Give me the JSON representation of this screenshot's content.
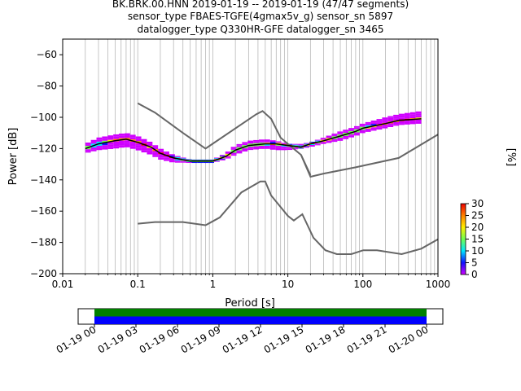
{
  "title_lines": [
    "BK.BRK.00.HNN   2019-01-19 -- 2019-01-19  (47/47 segments)",
    "sensor_type FBAES-TGFE(4gmax5v_g) sensor_sn 5897",
    "datalogger_type Q330HR-GFE datalogger_sn 3465"
  ],
  "chart_data": [
    {
      "type": "heatmap",
      "xlabel": "Period [s]",
      "ylabel": "Power [dB]",
      "xscale": "log",
      "xlim": [
        0.01,
        1000
      ],
      "ylim": [
        -200,
        -50
      ],
      "xticks": [
        0.01,
        0.1,
        1,
        10,
        100,
        1000
      ],
      "xtick_labels": [
        "0.01",
        "0.1",
        "1",
        "10",
        "100",
        "1000"
      ],
      "yticks": [
        -200,
        -180,
        -160,
        -140,
        -120,
        -100,
        -80,
        -60
      ],
      "ytick_labels": [
        "−200",
        "−180",
        "−160",
        "−140",
        "−120",
        "−100",
        "−80",
        "−60"
      ],
      "grid": "vertical-minor",
      "colorbar": {
        "label": "[%]",
        "range": [
          0,
          30
        ],
        "ticks": [
          0,
          5,
          10,
          15,
          20,
          25,
          30
        ],
        "tick_labels": [
          "0",
          "5",
          "10",
          "15",
          "20",
          "25",
          "30"
        ],
        "colors": [
          "#d000ff",
          "#1010ff",
          "#00e6ff",
          "#70ff50",
          "#ffee00",
          "#ff8000",
          "#ee0000"
        ]
      },
      "mode_curve": {
        "x": [
          0.02,
          0.03,
          0.05,
          0.07,
          0.1,
          0.15,
          0.2,
          0.3,
          0.5,
          0.8,
          1,
          1.5,
          2,
          3,
          5,
          7,
          10,
          15,
          20,
          30,
          50,
          80,
          100,
          200,
          300,
          600
        ],
        "y": [
          -120,
          -117,
          -115,
          -114,
          -116,
          -119,
          -123,
          -126,
          -128,
          -128,
          -128,
          -125,
          -121,
          -118,
          -117,
          -117,
          -118,
          -119,
          -117,
          -115,
          -112,
          -109,
          -107,
          -104,
          -102,
          -101
        ]
      },
      "density_band": {
        "x": [
          0.02,
          0.03,
          0.05,
          0.07,
          0.1,
          0.15,
          0.2,
          0.3,
          0.5,
          0.8,
          1,
          1.5,
          2,
          3,
          5,
          7,
          10,
          15,
          20,
          30,
          50,
          80,
          100,
          200,
          300,
          600
        ],
        "y_low": [
          -123,
          -121,
          -120,
          -119,
          -121,
          -124,
          -127,
          -129,
          -129,
          -129,
          -129,
          -127,
          -124,
          -121,
          -120,
          -121,
          -121,
          -120,
          -119,
          -117,
          -115,
          -112,
          -110,
          -107,
          -105,
          -104
        ],
        "y_high": [
          -117,
          -113,
          -111,
          -110,
          -112,
          -116,
          -120,
          -124,
          -127,
          -127,
          -127,
          -123,
          -118,
          -115,
          -114,
          -115,
          -117,
          -117,
          -116,
          -113,
          -109,
          -106,
          -104,
          -100,
          -98,
          -96
        ]
      },
      "noise_models": [
        {
          "x": [
            0.1,
            0.17,
            0.4,
            0.8,
            3.8,
            4.6,
            6,
            8,
            10,
            15,
            20
          ],
          "y": [
            -91,
            -97,
            -110,
            -120,
            -98,
            -96,
            -101,
            -113,
            -117,
            -124,
            -137
          ]
        },
        {
          "x": [
            15,
            20,
            30,
            80,
            300,
            1000
          ],
          "y": [
            -124,
            -138,
            -136,
            -132,
            -126,
            -111
          ]
        },
        {
          "x": [
            0.1,
            0.17,
            0.4,
            0.8,
            1.24,
            2.4,
            4.3,
            5,
            6,
            10,
            12,
            15.6,
            21.9,
            31.6,
            45,
            70,
            101,
            154,
            328,
            600,
            1000
          ],
          "y": [
            -168,
            -167,
            -167,
            -169,
            -164,
            -148,
            -141,
            -141,
            -150,
            -163,
            -166,
            -162,
            -177,
            -185,
            -187.5,
            -187.5,
            -185,
            -185,
            -187.5,
            -184,
            -178
          ]
        }
      ]
    },
    {
      "type": "bar",
      "xtick_labels": [
        "01-19 00",
        "01-19 03",
        "01-19 06",
        "01-19 09",
        "01-19 12",
        "01-19 15",
        "01-19 18",
        "01-19 21",
        "01-20 00"
      ],
      "xlim_hours": [
        0,
        24
      ],
      "data_range_hours": [
        0,
        24
      ],
      "series": [
        {
          "color": "#008000",
          "x_start_hours": 0,
          "x_end_hours": 24
        },
        {
          "color": "#0000ff",
          "x_start_hours": 0,
          "x_end_hours": 24
        }
      ]
    }
  ]
}
